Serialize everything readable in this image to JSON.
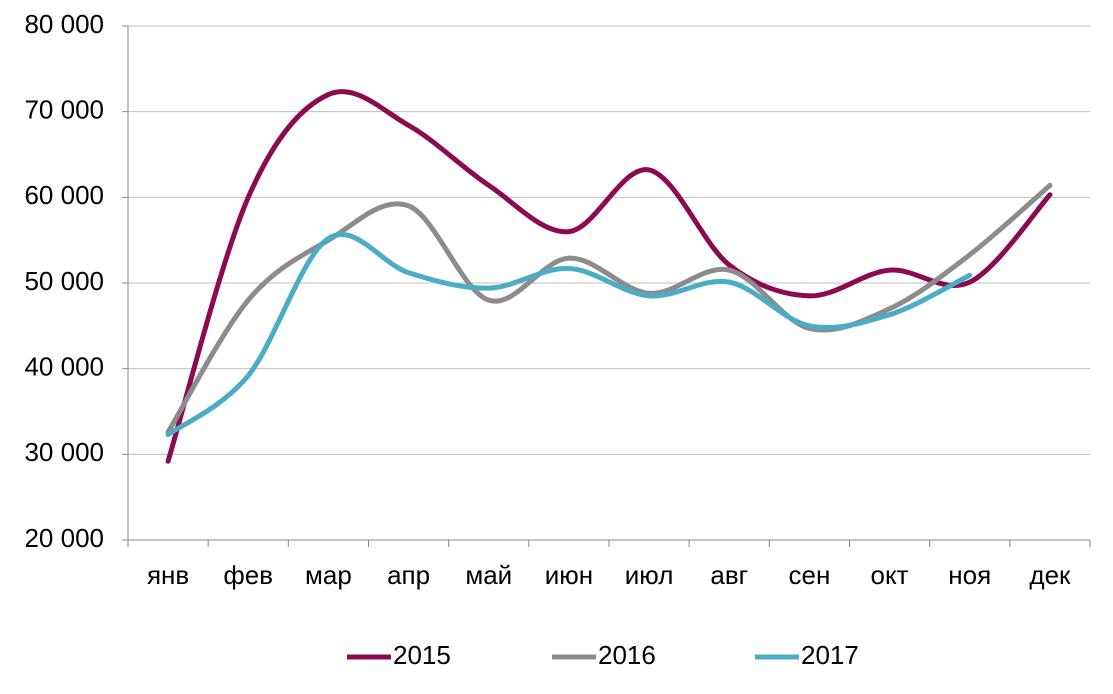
{
  "chart_data": {
    "type": "line",
    "categories": [
      "янв",
      "фев",
      "мар",
      "апр",
      "май",
      "июн",
      "июл",
      "авг",
      "сен",
      "окт",
      "ноя",
      "дек"
    ],
    "series": [
      {
        "name": "2015",
        "color": "#8b0a50",
        "values": [
          29200,
          60000,
          72000,
          68400,
          61400,
          56000,
          63200,
          52100,
          48500,
          51500,
          50100,
          60300
        ]
      },
      {
        "name": "2016",
        "color": "#8c8c8c",
        "values": [
          32600,
          48000,
          55000,
          59000,
          48000,
          52900,
          48800,
          51500,
          44700,
          47000,
          53300,
          61400
        ]
      },
      {
        "name": "2017",
        "color": "#4bacc6",
        "values": [
          32300,
          39200,
          55200,
          51200,
          49400,
          51700,
          48500,
          50100,
          45000,
          46300,
          50900,
          null
        ]
      }
    ],
    "ylim": [
      20000,
      80000
    ],
    "yticks": [
      {
        "value": 20000,
        "label": "20 000"
      },
      {
        "value": 30000,
        "label": "30 000"
      },
      {
        "value": 40000,
        "label": "40 000"
      },
      {
        "value": 50000,
        "label": "50 000"
      },
      {
        "value": 60000,
        "label": "60 000"
      },
      {
        "value": 70000,
        "label": "70 000"
      },
      {
        "value": 80000,
        "label": "80 000"
      }
    ],
    "grid": true,
    "smooth": true,
    "legend": "bottom"
  }
}
